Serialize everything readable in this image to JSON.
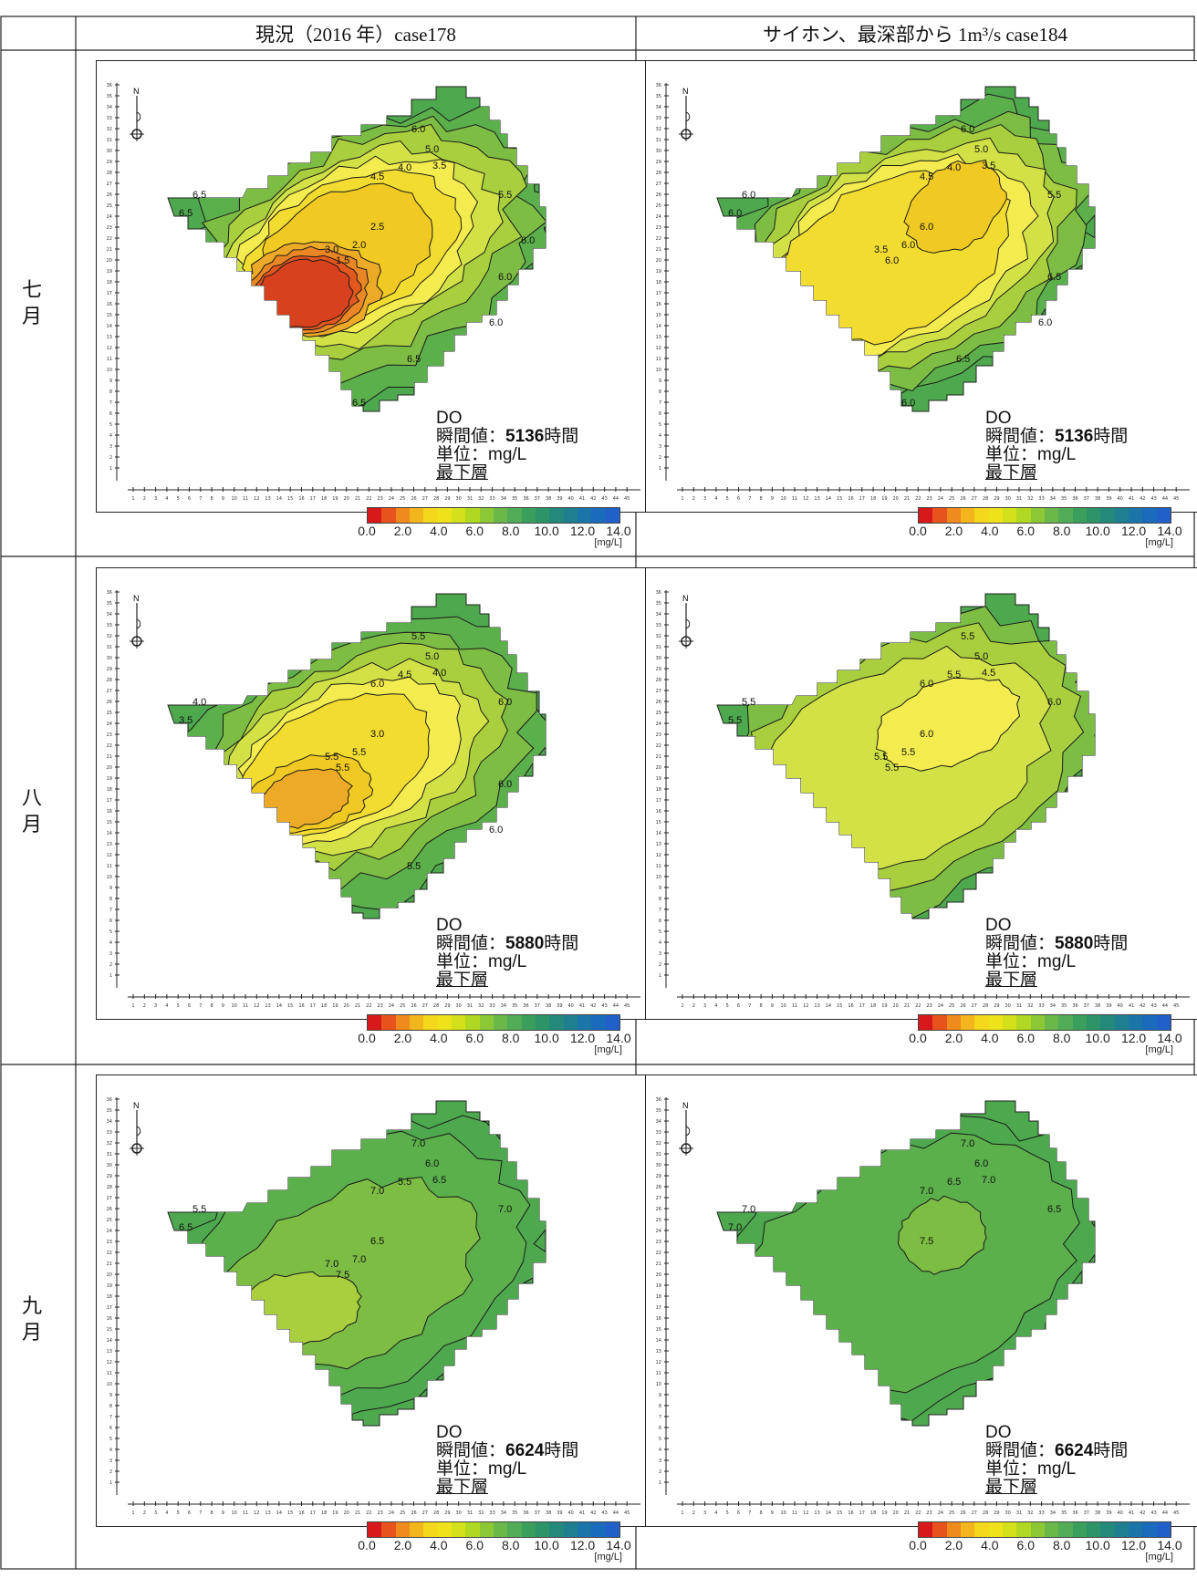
{
  "headers": {
    "left": "現況（2016 年）case178",
    "right": "サイホン、最深部から 1m³/s case184"
  },
  "rows": [
    {
      "label": "七月",
      "time_value": "5136",
      "contours": {
        "left": [
          "6.0",
          "5.0",
          "4.0",
          "3.5",
          "4.5",
          "5.5",
          "6.5",
          "6.5",
          "2.5",
          "3.0",
          "2.0",
          "1.5",
          "6.0",
          "6.0",
          "6.5",
          "6.5",
          "6.0"
        ],
        "right": [
          "6.0",
          "5.0",
          "4.0",
          "3.5",
          "4.5",
          "5.5",
          "6.0",
          "6.0",
          "6.0",
          "3.5",
          "6.0",
          "6.0",
          "6.5",
          "6.0",
          "6.5",
          "6.0"
        ]
      }
    },
    {
      "label": "八月",
      "time_value": "5880",
      "contours": {
        "left": [
          "5.5",
          "5.0",
          "4.5",
          "4.0",
          "6.0",
          "6.0",
          "4.0",
          "3.5",
          "3.0",
          "5.5",
          "5.5",
          "5.5",
          "6.0",
          "6.0",
          "5.5"
        ],
        "right": [
          "5.5",
          "5.0",
          "5.5",
          "4.5",
          "6.0",
          "6.0",
          "5.5",
          "5.5",
          "6.0",
          "5.5",
          "5.5",
          "5.5"
        ]
      }
    },
    {
      "label": "九月",
      "time_value": "6624",
      "contours": {
        "left": [
          "7.0",
          "6.0",
          "5.5",
          "6.5",
          "7.0",
          "7.0",
          "5.5",
          "6.5",
          "6.5",
          "7.0",
          "7.0",
          "7.5"
        ],
        "right": [
          "7.0",
          "6.0",
          "6.5",
          "7.0",
          "7.0",
          "6.5",
          "7.0",
          "7.0",
          "7.5"
        ]
      }
    }
  ],
  "plot_text": {
    "variable": "DO",
    "instant_label": "瞬間値：",
    "hours_unit": "時間",
    "unit_label": "単位：mg/L",
    "layer_label": "最下層",
    "north": "N"
  },
  "x_ticks": [
    "1",
    "2",
    "3",
    "4",
    "5",
    "6",
    "7",
    "8",
    "9",
    "10",
    "11",
    "12",
    "13",
    "14",
    "15",
    "16",
    "17",
    "18",
    "19",
    "20",
    "21",
    "22",
    "23",
    "24",
    "25",
    "26",
    "27",
    "28",
    "29",
    "30",
    "31",
    "32",
    "33",
    "34",
    "35",
    "36",
    "37",
    "38",
    "39",
    "40",
    "41",
    "42",
    "43",
    "44",
    "45"
  ],
  "y_ticks": [
    "36",
    "35",
    "34",
    "33",
    "32",
    "31",
    "30",
    "29",
    "28",
    "27",
    "26",
    "25",
    "24",
    "23",
    "22",
    "21",
    "20",
    "19",
    "18",
    "17",
    "16",
    "15",
    "14",
    "13",
    "12",
    "11",
    "10",
    "9",
    "8",
    "7",
    "6",
    "5",
    "4",
    "3",
    "2",
    "1"
  ],
  "colorbar": {
    "ticks": [
      "0.0",
      "2.0",
      "4.0",
      "6.0",
      "8.0",
      "10.0",
      "12.0",
      "14.0"
    ],
    "unit": "[mg/L]",
    "colors": [
      "#d7191c",
      "#e8521c",
      "#ef8a1c",
      "#f2b61c",
      "#f4d81c",
      "#eee21a",
      "#d3e11a",
      "#b0d721",
      "#8cc836",
      "#6ab84a",
      "#50ac56",
      "#3a9f5c",
      "#2d9467",
      "#23897a",
      "#1f7f91",
      "#1b75a8",
      "#1a6bbc",
      "#2060c8"
    ],
    "level_colors": {
      "1.5": "#d8411e",
      "2.0": "#e4571e",
      "2.5": "#ea8623",
      "3.0": "#edaa26",
      "3.5": "#f0c923",
      "4.0": "#f3dc30",
      "4.5": "#f4ec4e",
      "5.0": "#d2e246",
      "5.5": "#a9cf3e",
      "6.0": "#7dbd43",
      "6.5": "#5bb04b",
      "7.0": "#4ea84e",
      "bg": "#4ea84e"
    }
  }
}
